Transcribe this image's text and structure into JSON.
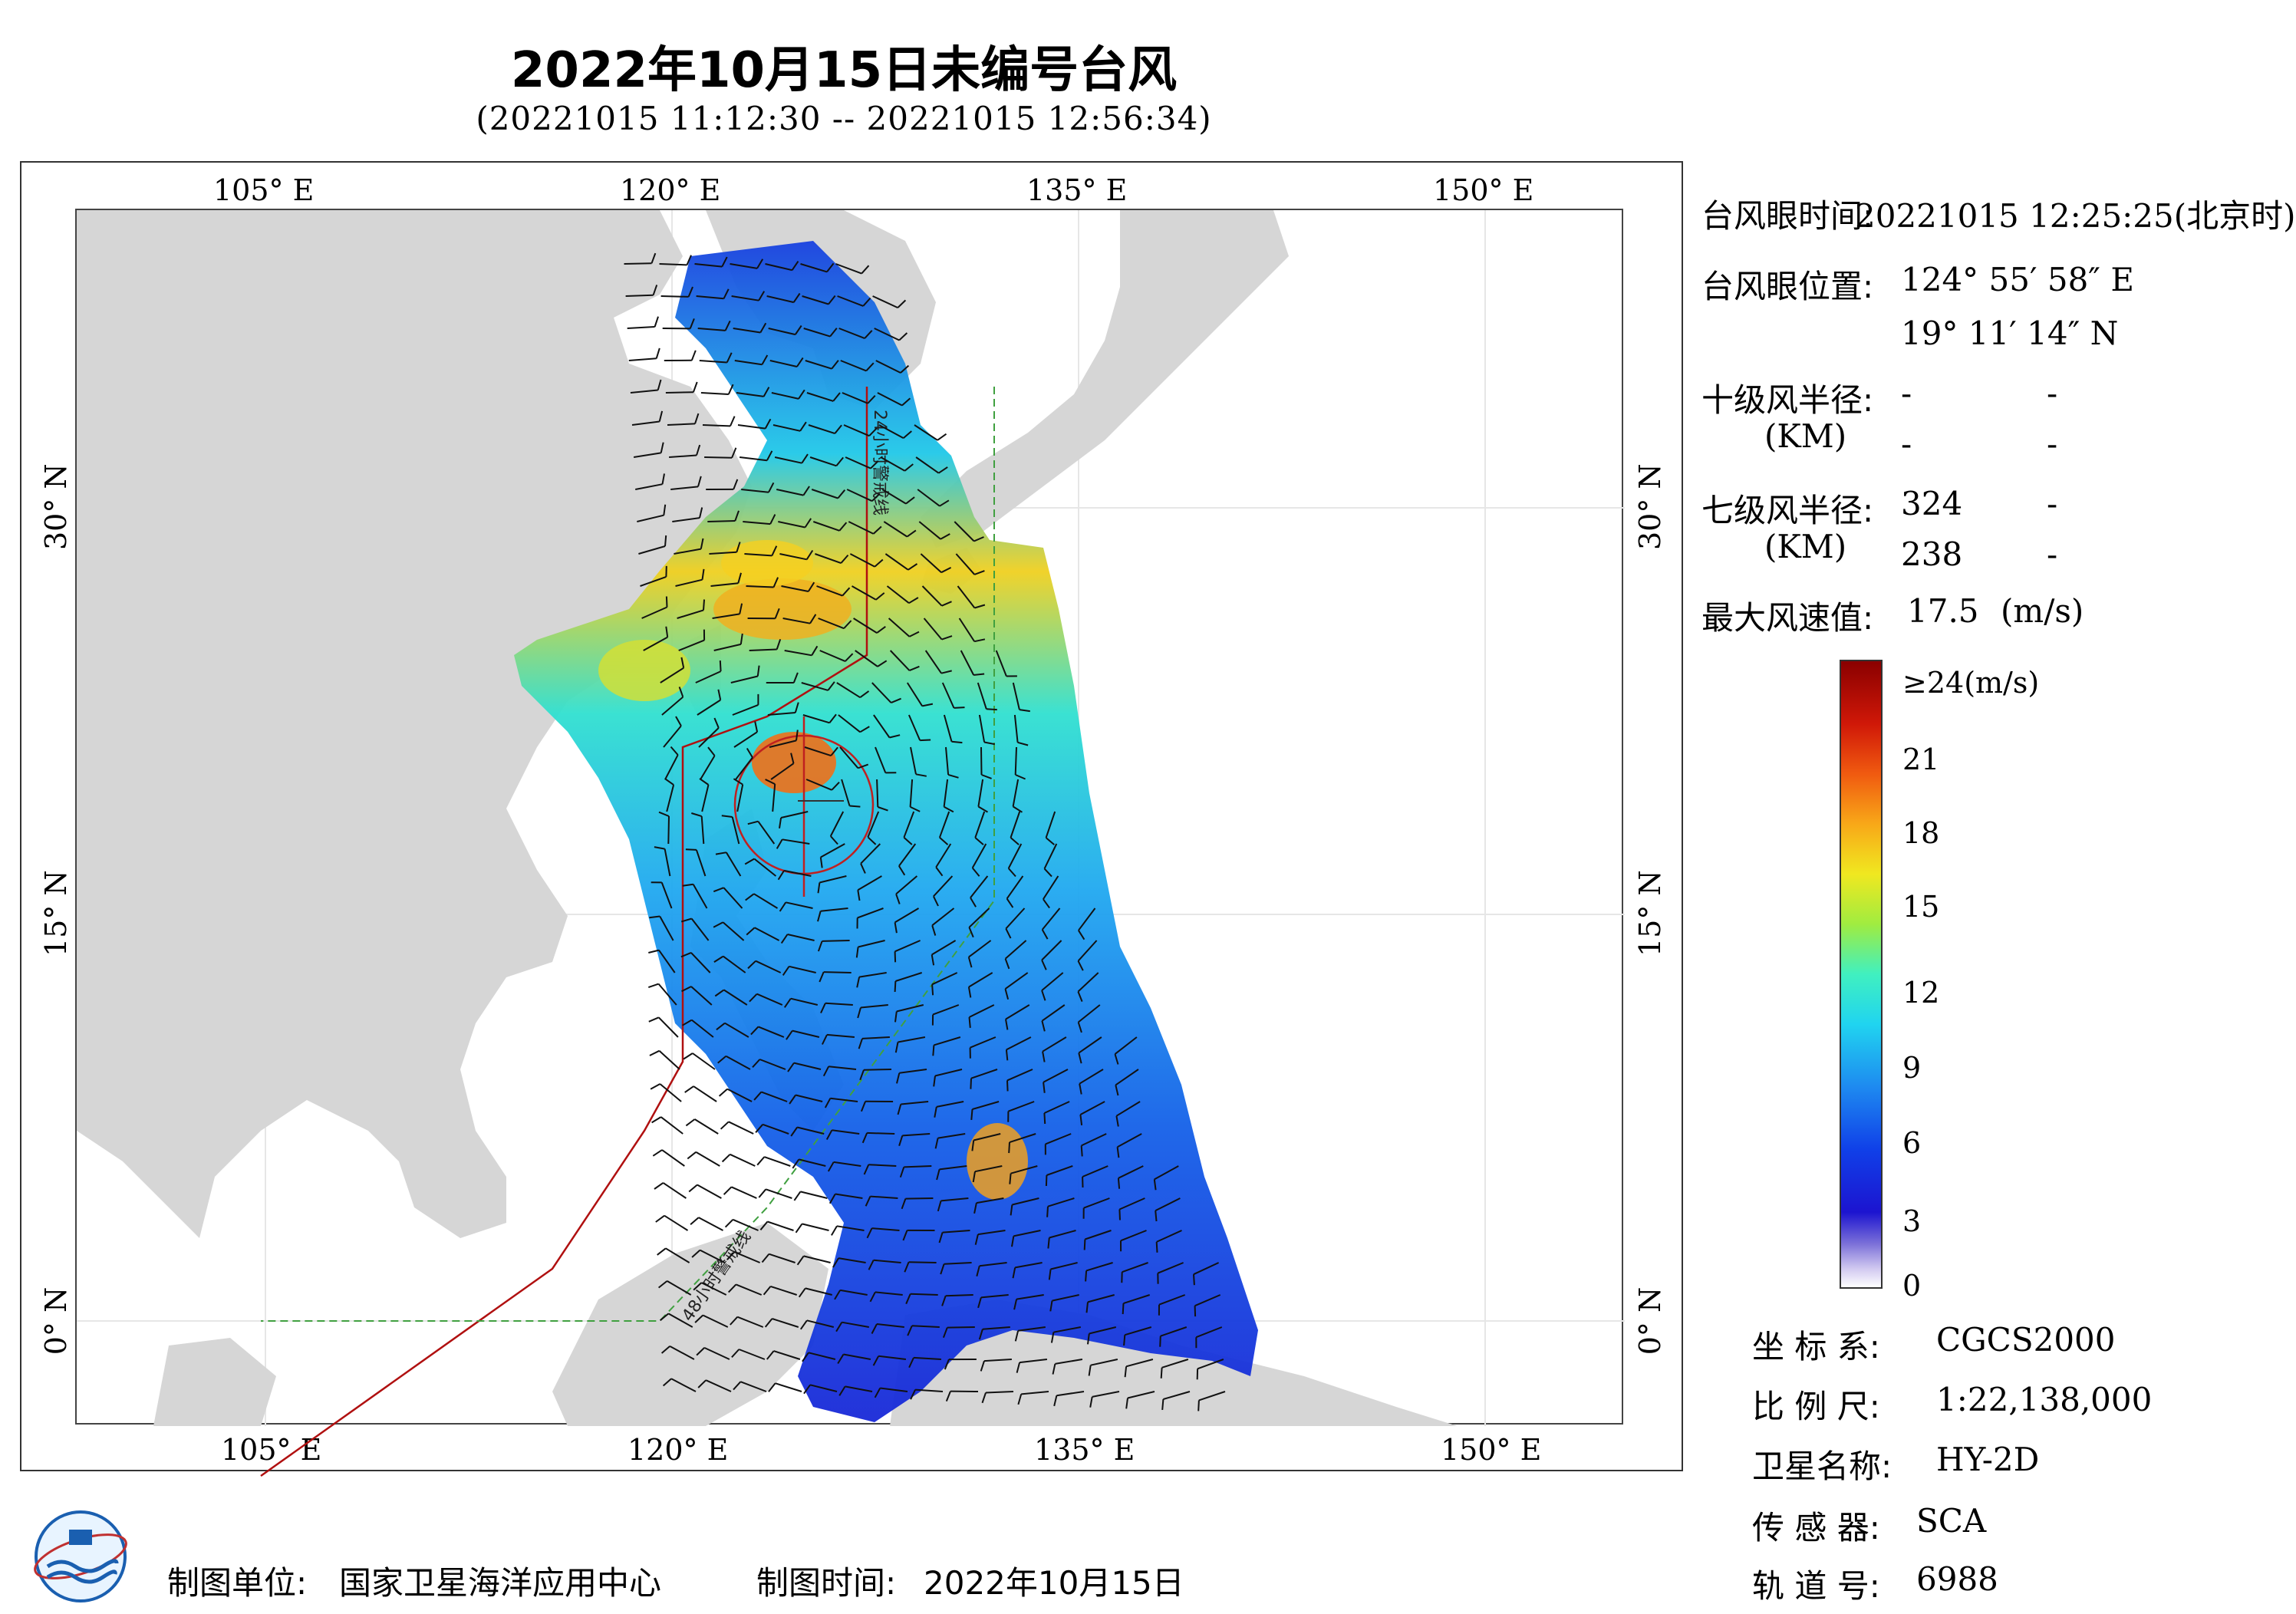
{
  "header": {
    "title": "2022年10月15日未编号台风",
    "subtitle": "(20221015 11:12:30 -- 20221015 12:56:34)"
  },
  "axes": {
    "lon_labels": [
      "105° E",
      "120° E",
      "135° E",
      "150° E"
    ],
    "lat_labels": [
      "30° N",
      "15° N",
      "0° N"
    ]
  },
  "map_labels": {
    "line24": "24小时警戒线",
    "line48": "48小时警戒线"
  },
  "info": {
    "eye_time_label": "台风眼时间:",
    "eye_time_value": "20221015 12:25:25(北京时)",
    "eye_pos_label": "台风眼位置:",
    "eye_pos_lon": "124° 55′ 58″ E",
    "eye_pos_lat": "19° 11′ 14″ N",
    "r10_label": "十级风半径:",
    "r10_unit": "(KM)",
    "r10_v1": "-",
    "r10_v2": "-",
    "r10_v3": "-",
    "r10_v4": "-",
    "r7_label": "七级风半径:",
    "r7_unit": "(KM)",
    "r7_v1": "324",
    "r7_v2": "-",
    "r7_v3": "238",
    "r7_v4": "-",
    "max_label": "最大风速值:",
    "max_value": "17.5",
    "max_unit": "(m/s)"
  },
  "colorbar": {
    "labels": [
      "≥24(m/s)",
      "21",
      "18",
      "15",
      "12",
      "9",
      "6",
      "3",
      "0"
    ],
    "colors": [
      "#ffffff",
      "#1c14d0",
      "#1e8af0",
      "#20d4f0",
      "#a0ec40",
      "#f0e820",
      "#f05a10",
      "#8a0000"
    ]
  },
  "meta": {
    "crs_label": "坐 标 系:",
    "crs_value": "CGCS2000",
    "scale_label": "比 例 尺:",
    "scale_value": "1:22,138,000",
    "sat_label": "卫星名称:",
    "sat_value": "HY-2D",
    "sensor_label": "传 感 器:",
    "sensor_value": "SCA",
    "orbit_label": "轨 道 号:",
    "orbit_value": "6988"
  },
  "footer": {
    "unit_label": "制图单位:",
    "unit_value": "国家卫星海洋应用中心",
    "time_label": "制图时间:",
    "time_value": "2022年10月15日"
  }
}
